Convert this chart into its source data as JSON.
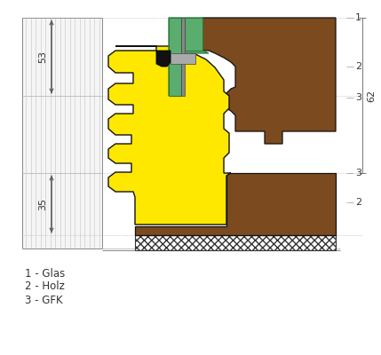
{
  "bg_color": "#ffffff",
  "line_color": "#555555",
  "yellow_color": "#FFE800",
  "brown_color": "#7B4A1E",
  "green_color": "#5BAD6F",
  "dark_color": "#111111",
  "dim_53": "53",
  "dim_35": "35",
  "dim_62": "62",
  "legend_1": "1 - Glas",
  "legend_2": "2 - Holz",
  "legend_3": "3 - GFK",
  "label_1": "1",
  "label_2": "2",
  "label_3": "3"
}
